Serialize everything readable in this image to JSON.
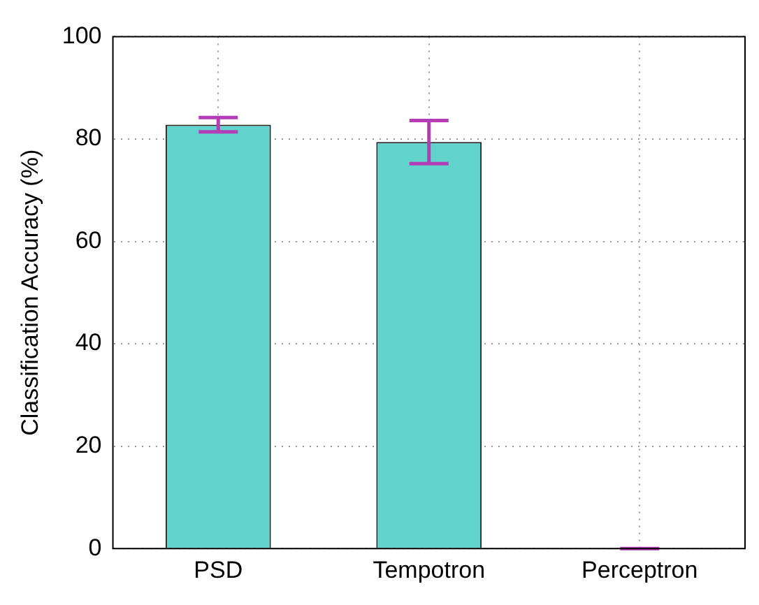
{
  "chart_data": {
    "type": "bar",
    "ylabel": "Classification Accuracy (%)",
    "categories": [
      "PSD",
      "Tempotron",
      "Perceptron"
    ],
    "values": [
      82.8,
      79.4,
      0
    ],
    "errors": [
      1.4,
      4.2,
      0
    ],
    "color": "#62d2cc",
    "ylim": [
      0,
      100
    ],
    "yticks": [
      0,
      20,
      40,
      60,
      80,
      100
    ],
    "grid": true
  }
}
